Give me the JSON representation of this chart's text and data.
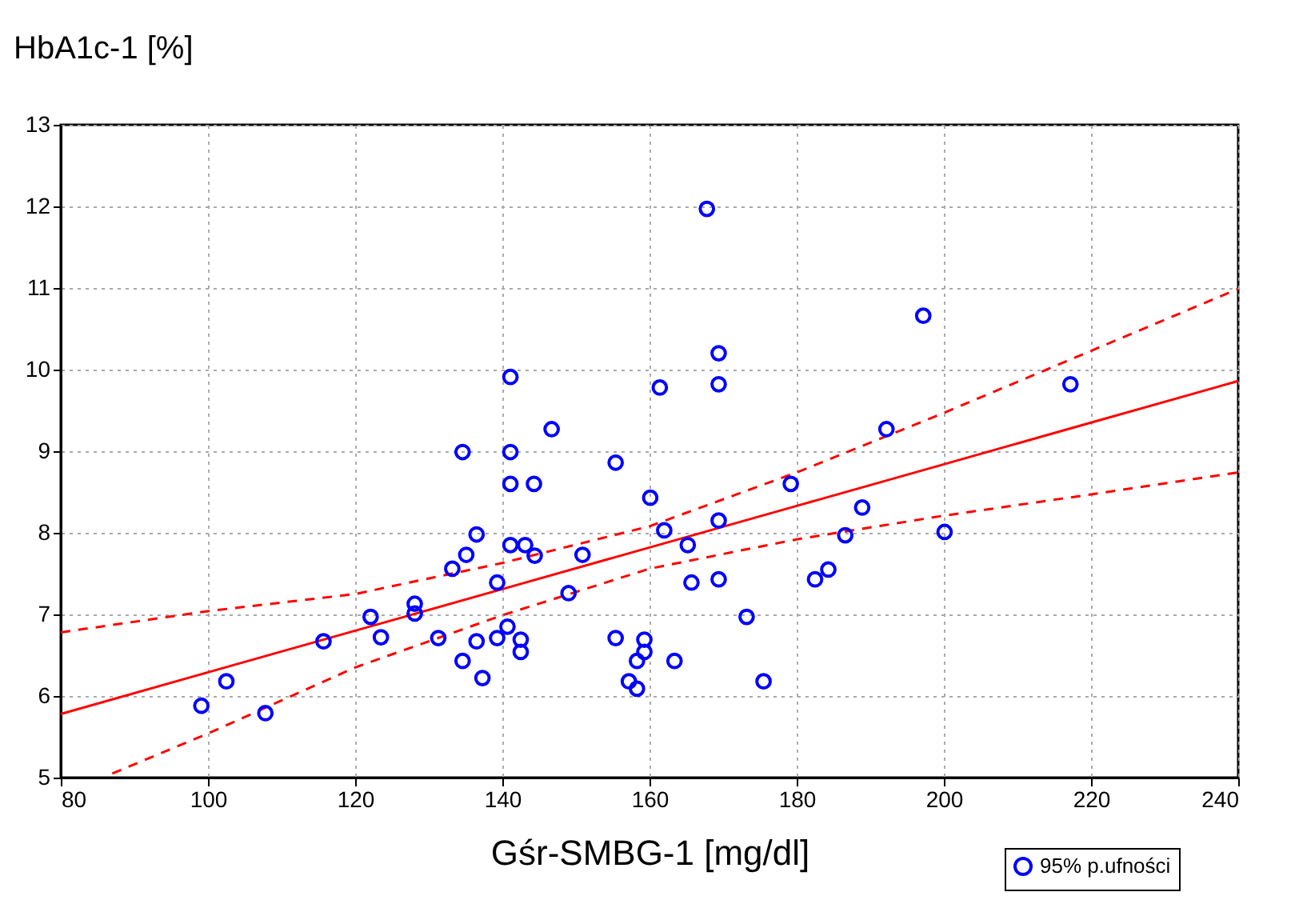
{
  "chart_data": {
    "type": "scatter",
    "xlabel": "Gśr-SMBG-1 [mg/dl]",
    "ylabel": "HbA1c-1 [%]",
    "xlim": [
      80,
      240
    ],
    "xticks": [
      80,
      100,
      120,
      140,
      160,
      180,
      200,
      220,
      240
    ],
    "ylim": [
      5,
      13
    ],
    "yticks": [
      5,
      6,
      7,
      8,
      9,
      10,
      11,
      12,
      13
    ],
    "grid": true,
    "legend": "bottom right",
    "series": [
      {
        "name": "95% p.ufności",
        "marker": "circle",
        "color": "#0000ff",
        "x": [
          99.1,
          102.5,
          107.8,
          115.7,
          122.1,
          123.5,
          128.1,
          128.1,
          131.3,
          169.4,
          169.4,
          141.1,
          161.4,
          146.7,
          134.6,
          141.1,
          155.4,
          141.1,
          144.3,
          160.1,
          136.5,
          162.0,
          169.4,
          135.1,
          133.2,
          141.1,
          143.1,
          144.4,
          150.9,
          165.2,
          139.3,
          149.0,
          165.7,
          169.4,
          136.5,
          139.3,
          140.7,
          142.5,
          142.5,
          134.6,
          137.3,
          155.4,
          159.3,
          159.3,
          158.3,
          163.4,
          157.2,
          158.3,
          167.8,
          197.2,
          192.2,
          179.2,
          188.9,
          186.6,
          200.1,
          184.3,
          182.5,
          173.2,
          175.5,
          217.2
        ],
        "values": [
          5.88,
          6.18,
          5.79,
          6.67,
          6.97,
          6.72,
          7.13,
          7.01,
          6.71,
          10.2,
          9.82,
          9.91,
          9.78,
          9.27,
          8.99,
          8.99,
          8.86,
          8.6,
          8.6,
          8.43,
          7.98,
          8.03,
          8.15,
          7.73,
          7.56,
          7.85,
          7.85,
          7.72,
          7.73,
          7.85,
          7.39,
          7.26,
          7.39,
          7.43,
          6.67,
          6.71,
          6.85,
          6.69,
          6.54,
          6.43,
          6.22,
          6.71,
          6.69,
          6.54,
          6.43,
          6.43,
          6.18,
          6.09,
          11.97,
          10.66,
          9.27,
          8.6,
          8.31,
          7.97,
          8.01,
          7.55,
          7.43,
          6.97,
          6.18,
          9.82
        ]
      },
      {
        "type": "line",
        "line_style": "solid",
        "color": "#ff0000",
        "x": [
          80,
          100,
          120,
          140,
          160,
          180,
          200,
          220,
          240
        ],
        "values": [
          5.78,
          6.29,
          6.8,
          7.31,
          7.82,
          8.33,
          8.84,
          9.35,
          9.86
        ]
      },
      {
        "type": "line",
        "line_style": "dashed",
        "color": "#ff0000",
        "x": [
          80,
          100,
          120,
          140,
          160,
          180,
          200,
          220,
          240
        ],
        "values": [
          6.78,
          7.04,
          7.25,
          7.63,
          8.08,
          8.74,
          9.47,
          10.23,
          10.99
        ]
      },
      {
        "type": "line",
        "line_style": "dashed",
        "color": "#ff0000",
        "x": [
          87,
          100,
          120,
          140,
          160,
          180,
          200,
          220,
          240
        ],
        "values": [
          5.05,
          5.54,
          6.35,
          6.99,
          7.56,
          7.92,
          8.21,
          8.47,
          8.74
        ]
      }
    ]
  }
}
